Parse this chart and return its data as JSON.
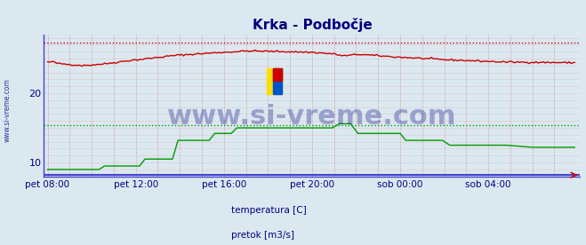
{
  "title": "Krka - Podbočje",
  "title_color": "#000080",
  "bg_color": "#dce8f0",
  "plot_bg_color": "#dce8f0",
  "ylim": [
    8.0,
    28.5
  ],
  "yticks": [
    10,
    20
  ],
  "ylabel_color": "#000080",
  "xlabel_color": "#000080",
  "xtick_labels": [
    "pet 08:00",
    "pet 12:00",
    "pet 16:00",
    "pet 20:00",
    "sob 00:00",
    "sob 04:00"
  ],
  "xtick_positions": [
    0,
    48,
    96,
    144,
    192,
    240
  ],
  "n_points": 288,
  "red_hline": 27.3,
  "green_hline": 15.4,
  "blue_hline_y": 8.2,
  "temp_color": "#cc0000",
  "flow_color": "#009900",
  "hline_red_color": "#cc0000",
  "hline_green_color": "#009900",
  "bottom_line_color": "#4444cc",
  "vgrid_color": "#cc4444",
  "hgrid_color": "#cc4444",
  "watermark": "www.si-vreme.com",
  "watermark_color": "#000080",
  "watermark_alpha": 0.3,
  "watermark_fontsize": 22,
  "legend_temp_color": "#cc0000",
  "legend_flow_color": "#009900",
  "legend_label_color": "#000080",
  "legend_temp_label": "temperatura [C]",
  "legend_flow_label": "pretok [m3/s]",
  "sidebar_text": "www.si-vreme.com",
  "sidebar_color": "#000080",
  "left_spine_color": "#4444cc",
  "bottom_spine_color": "#4444cc"
}
